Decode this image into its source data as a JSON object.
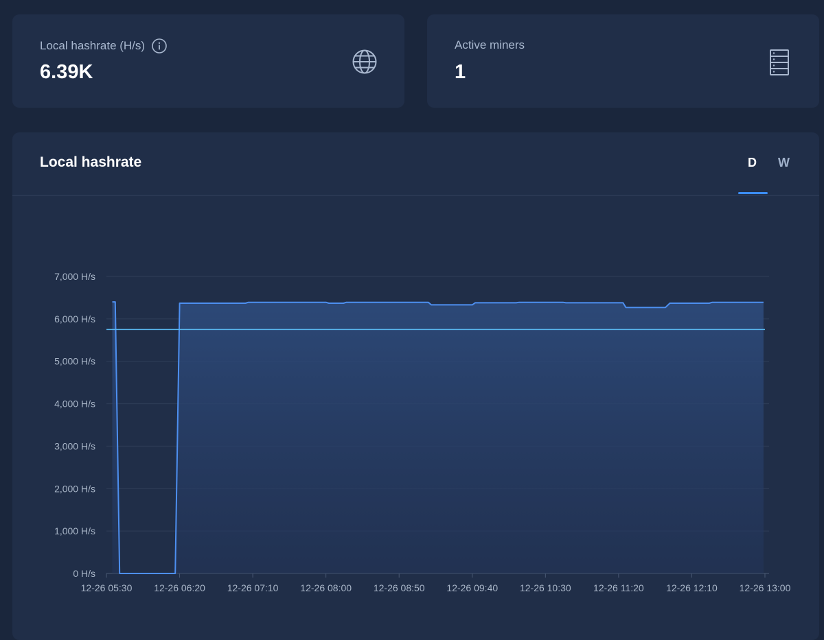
{
  "stats": {
    "hashrate": {
      "label": "Local hashrate (H/s)",
      "value": "6.39K",
      "info_icon": "info-icon",
      "icon": "globe-icon"
    },
    "miners": {
      "label": "Active miners",
      "value": "1",
      "icon": "server-icon"
    }
  },
  "chart_panel": {
    "title": "Local hashrate",
    "tabs": [
      {
        "label": "D",
        "active": true
      },
      {
        "label": "W",
        "active": false
      }
    ]
  },
  "colors": {
    "background": "#1a263c",
    "card": "#202e48",
    "line": "#4d8ff0",
    "average_line": "#5ab8f0",
    "tab_accent": "#3c8df5"
  },
  "chart_data": {
    "type": "area",
    "title": "Local hashrate",
    "xlabel": "",
    "ylabel": "",
    "ylim": [
      0,
      7000
    ],
    "y_ticks": [
      {
        "value": 0,
        "label": "0 H/s"
      },
      {
        "value": 1000,
        "label": "1,000 H/s"
      },
      {
        "value": 2000,
        "label": "2,000 H/s"
      },
      {
        "value": 3000,
        "label": "3,000 H/s"
      },
      {
        "value": 4000,
        "label": "4,000 H/s"
      },
      {
        "value": 5000,
        "label": "5,000 H/s"
      },
      {
        "value": 6000,
        "label": "6,000 H/s"
      },
      {
        "value": 7000,
        "label": "7,000 H/s"
      }
    ],
    "x_ticks": [
      "12-26 05:30",
      "12-26 06:20",
      "12-26 07:10",
      "12-26 08:00",
      "12-26 08:50",
      "12-26 09:40",
      "12-26 10:30",
      "12-26 11:20",
      "12-26 12:10",
      "12-26 13:00"
    ],
    "x_range": [
      "12-26 05:30",
      "12-26 13:00"
    ],
    "average": 5750,
    "grid": true,
    "series": [
      {
        "points": [
          [
            "12-26 05:34",
            6400
          ],
          [
            "12-26 05:36",
            6400
          ],
          [
            "12-26 05:39",
            0
          ],
          [
            "12-26 06:17",
            0
          ],
          [
            "12-26 06:20",
            6370
          ],
          [
            "12-26 07:05",
            6370
          ],
          [
            "12-26 07:07",
            6390
          ],
          [
            "12-26 08:00",
            6390
          ],
          [
            "12-26 08:02",
            6370
          ],
          [
            "12-26 08:12",
            6370
          ],
          [
            "12-26 08:14",
            6390
          ],
          [
            "12-26 09:10",
            6390
          ],
          [
            "12-26 09:12",
            6330
          ],
          [
            "12-26 09:40",
            6330
          ],
          [
            "12-26 09:42",
            6380
          ],
          [
            "12-26 10:10",
            6380
          ],
          [
            "12-26 10:12",
            6390
          ],
          [
            "12-26 10:42",
            6390
          ],
          [
            "12-26 10:44",
            6380
          ],
          [
            "12-26 11:23",
            6380
          ],
          [
            "12-26 11:25",
            6270
          ],
          [
            "12-26 11:52",
            6270
          ],
          [
            "12-26 11:55",
            6370
          ],
          [
            "12-26 12:22",
            6370
          ],
          [
            "12-26 12:24",
            6390
          ],
          [
            "12-26 12:59",
            6390
          ]
        ]
      }
    ]
  }
}
